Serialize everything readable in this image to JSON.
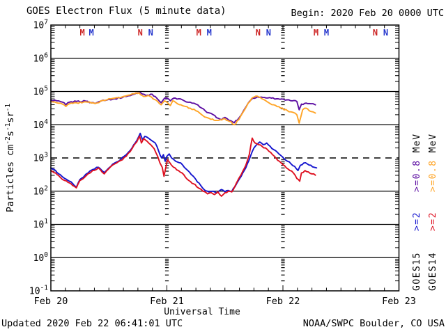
{
  "header": {
    "title": "GOES Electron Flux (5 minute data)",
    "begin": "Begin: 2020 Feb 20 0000 UTC"
  },
  "footer": {
    "updated": "Updated 2020 Feb 22 06:41:01 UTC",
    "source": "NOAA/SWPC Boulder, CO USA"
  },
  "chart_data": {
    "type": "line",
    "title": "GOES Electron Flux (5 minute data)",
    "xlabel": "Universal Time",
    "ylabel_parts": [
      {
        "text": "Particles cm"
      },
      {
        "text": "-2",
        "sup": true
      },
      {
        "text": "s"
      },
      {
        "text": "-1",
        "sup": true
      },
      {
        "text": "sr"
      },
      {
        "text": "-1",
        "sup": true
      }
    ],
    "xlim_days": [
      0,
      3
    ],
    "ylim_exponents": [
      -1,
      7
    ],
    "y_tick_exponents": [
      7,
      6,
      5,
      4,
      3,
      2,
      1,
      0,
      -1
    ],
    "x_ticks": [
      {
        "label": "Feb 20",
        "t": 0
      },
      {
        "label": "Feb 21",
        "t": 1
      },
      {
        "label": "Feb 22",
        "t": 2
      },
      {
        "label": "Feb 23",
        "t": 3
      }
    ],
    "x_minor_step_days": 0.125,
    "interior_day_lines": [
      1,
      2
    ],
    "threshold": {
      "value": 1000,
      "exponent": 3,
      "style": "dashed"
    },
    "axis_color": "#000000",
    "markers": [
      {
        "label": "M",
        "t": 0.271,
        "color": "#CC2222"
      },
      {
        "label": "M",
        "t": 0.349,
        "color": "#2233CC"
      },
      {
        "label": "N",
        "t": 0.77,
        "color": "#CC2222"
      },
      {
        "label": "N",
        "t": 0.86,
        "color": "#2233CC"
      },
      {
        "label": "M",
        "t": 1.275,
        "color": "#CC2222"
      },
      {
        "label": "M",
        "t": 1.365,
        "color": "#2233CC"
      },
      {
        "label": "N",
        "t": 1.786,
        "color": "#CC2222"
      },
      {
        "label": "N",
        "t": 1.876,
        "color": "#2233CC"
      },
      {
        "label": "M",
        "t": 2.285,
        "color": "#CC2222"
      },
      {
        "label": "M",
        "t": 2.375,
        "color": "#2233CC"
      },
      {
        "label": "N",
        "t": 2.796,
        "color": "#CC2222"
      },
      {
        "label": "N",
        "t": 2.886,
        "color": "#2233CC"
      }
    ],
    "legend": {
      "columns": [
        {
          "satellite": "GOES15",
          "unit": "MeV",
          "entries": [
            {
              "text": ">=2",
              "color": "#1414CE"
            },
            {
              "text": ">=0.8",
              "color": "#5C0DA2"
            }
          ]
        },
        {
          "satellite": "GOES14",
          "unit": "MeV",
          "entries": [
            {
              "text": ">=2",
              "color": "#DE1020"
            },
            {
              "text": ">=0.8",
              "color": "#FFA426"
            }
          ]
        }
      ]
    },
    "series": [
      {
        "name": "GOES15 >=0.8 MeV",
        "satellite": "GOES15",
        "channel": ">=0.8 MeV",
        "color": "#5C0DA2",
        "points": [
          [
            0.0,
            55000
          ],
          [
            0.05,
            52500
          ],
          [
            0.1,
            47900
          ],
          [
            0.13,
            39800
          ],
          [
            0.16,
            47900
          ],
          [
            0.22,
            50100
          ],
          [
            0.3,
            51300
          ],
          [
            0.38,
            43700
          ],
          [
            0.45,
            55000
          ],
          [
            0.55,
            60300
          ],
          [
            0.65,
            70800
          ],
          [
            0.72,
            83200
          ],
          [
            0.77,
            93300
          ],
          [
            0.82,
            75900
          ],
          [
            0.86,
            83200
          ],
          [
            0.9,
            70800
          ],
          [
            0.95,
            45700
          ],
          [
            0.98,
            63100
          ],
          [
            1.0,
            63100
          ],
          [
            1.03,
            52500
          ],
          [
            1.06,
            63100
          ],
          [
            1.1,
            60300
          ],
          [
            1.15,
            52500
          ],
          [
            1.2,
            47900
          ],
          [
            1.25,
            41700
          ],
          [
            1.3,
            31600
          ],
          [
            1.33,
            26300
          ],
          [
            1.36,
            22900
          ],
          [
            1.4,
            20000
          ],
          [
            1.44,
            15800
          ],
          [
            1.47,
            14100
          ],
          [
            1.5,
            16600
          ],
          [
            1.52,
            15100
          ],
          [
            1.55,
            13200
          ],
          [
            1.58,
            11500
          ],
          [
            1.62,
            15800
          ],
          [
            1.66,
            26300
          ],
          [
            1.7,
            44700
          ],
          [
            1.74,
            63100
          ],
          [
            1.78,
            69200
          ],
          [
            1.84,
            66100
          ],
          [
            1.9,
            63100
          ],
          [
            1.96,
            60300
          ],
          [
            2.02,
            55000
          ],
          [
            2.08,
            52500
          ],
          [
            2.12,
            50100
          ],
          [
            2.14,
            28200
          ],
          [
            2.16,
            41700
          ],
          [
            2.2,
            44700
          ],
          [
            2.24,
            42700
          ],
          [
            2.28,
            39800
          ]
        ]
      },
      {
        "name": "GOES14 >=0.8 MeV",
        "satellite": "GOES14",
        "channel": ">=0.8 MeV",
        "color": "#FFA426",
        "points": [
          [
            0.0,
            50100
          ],
          [
            0.05,
            45700
          ],
          [
            0.1,
            41700
          ],
          [
            0.13,
            35500
          ],
          [
            0.16,
            42700
          ],
          [
            0.22,
            45700
          ],
          [
            0.3,
            49000
          ],
          [
            0.38,
            43700
          ],
          [
            0.45,
            53700
          ],
          [
            0.55,
            63100
          ],
          [
            0.65,
            74100
          ],
          [
            0.72,
            85100
          ],
          [
            0.76,
            91200
          ],
          [
            0.8,
            70800
          ],
          [
            0.84,
            75900
          ],
          [
            0.88,
            60300
          ],
          [
            0.92,
            50100
          ],
          [
            0.95,
            39800
          ],
          [
            0.98,
            52500
          ],
          [
            1.0,
            47900
          ],
          [
            1.03,
            38000
          ],
          [
            1.05,
            52500
          ],
          [
            1.08,
            45700
          ],
          [
            1.12,
            39800
          ],
          [
            1.16,
            35500
          ],
          [
            1.2,
            31600
          ],
          [
            1.25,
            26300
          ],
          [
            1.3,
            20000
          ],
          [
            1.34,
            16600
          ],
          [
            1.38,
            14500
          ],
          [
            1.42,
            13500
          ],
          [
            1.46,
            14100
          ],
          [
            1.5,
            15100
          ],
          [
            1.54,
            12600
          ],
          [
            1.58,
            10000
          ],
          [
            1.62,
            14100
          ],
          [
            1.66,
            25100
          ],
          [
            1.7,
            44700
          ],
          [
            1.74,
            66100
          ],
          [
            1.78,
            72400
          ],
          [
            1.82,
            60300
          ],
          [
            1.86,
            50100
          ],
          [
            1.92,
            39800
          ],
          [
            1.98,
            31600
          ],
          [
            2.04,
            26300
          ],
          [
            2.08,
            24000
          ],
          [
            2.12,
            20000
          ],
          [
            2.14,
            11200
          ],
          [
            2.17,
            28200
          ],
          [
            2.2,
            31600
          ],
          [
            2.24,
            25100
          ],
          [
            2.28,
            22400
          ]
        ]
      },
      {
        "name": "GOES15 >=2 MeV",
        "satellite": "GOES15",
        "channel": ">=2 MeV",
        "color": "#1414CE",
        "points": [
          [
            0.0,
            501
          ],
          [
            0.04,
            417
          ],
          [
            0.08,
            316
          ],
          [
            0.12,
            240
          ],
          [
            0.16,
            200
          ],
          [
            0.2,
            151
          ],
          [
            0.22,
            132
          ],
          [
            0.25,
            224
          ],
          [
            0.28,
            263
          ],
          [
            0.32,
            355
          ],
          [
            0.36,
            447
          ],
          [
            0.41,
            525
          ],
          [
            0.44,
            417
          ],
          [
            0.46,
            363
          ],
          [
            0.5,
            501
          ],
          [
            0.55,
            708
          ],
          [
            0.6,
            891
          ],
          [
            0.65,
            1260
          ],
          [
            0.7,
            2000
          ],
          [
            0.74,
            3310
          ],
          [
            0.77,
            5500
          ],
          [
            0.79,
            3550
          ],
          [
            0.81,
            4470
          ],
          [
            0.84,
            3980
          ],
          [
            0.87,
            3310
          ],
          [
            0.9,
            2820
          ],
          [
            0.93,
            1580
          ],
          [
            0.955,
            1000
          ],
          [
            0.97,
            1260
          ],
          [
            0.985,
            794
          ],
          [
            1.0,
            1120
          ],
          [
            1.02,
            1320
          ],
          [
            1.04,
            1000
          ],
          [
            1.06,
            891
          ],
          [
            1.09,
            759
          ],
          [
            1.12,
            708
          ],
          [
            1.15,
            525
          ],
          [
            1.18,
            417
          ],
          [
            1.21,
            316
          ],
          [
            1.25,
            224
          ],
          [
            1.29,
            151
          ],
          [
            1.32,
            112
          ],
          [
            1.36,
            95
          ],
          [
            1.4,
            100
          ],
          [
            1.43,
            89
          ],
          [
            1.47,
            112
          ],
          [
            1.5,
            95
          ],
          [
            1.53,
            105
          ],
          [
            1.56,
            100
          ],
          [
            1.6,
            166
          ],
          [
            1.64,
            282
          ],
          [
            1.68,
            501
          ],
          [
            1.72,
            1120
          ],
          [
            1.75,
            2000
          ],
          [
            1.78,
            2630
          ],
          [
            1.8,
            3020
          ],
          [
            1.83,
            2510
          ],
          [
            1.86,
            2820
          ],
          [
            1.89,
            2240
          ],
          [
            1.92,
            1780
          ],
          [
            1.95,
            1510
          ],
          [
            1.98,
            1200
          ],
          [
            2.01,
            955
          ],
          [
            2.04,
            794
          ],
          [
            2.07,
            661
          ],
          [
            2.1,
            562
          ],
          [
            2.13,
            417
          ],
          [
            2.15,
            603
          ],
          [
            2.18,
            708
          ],
          [
            2.21,
            661
          ],
          [
            2.24,
            603
          ],
          [
            2.27,
            525
          ],
          [
            2.29,
            501
          ]
        ]
      },
      {
        "name": "GOES14 >=2 MeV",
        "satellite": "GOES14",
        "channel": ">=2 MeV",
        "color": "#DE1020",
        "points": [
          [
            0.0,
            417
          ],
          [
            0.04,
            355
          ],
          [
            0.08,
            263
          ],
          [
            0.12,
            209
          ],
          [
            0.16,
            178
          ],
          [
            0.2,
            141
          ],
          [
            0.22,
            126
          ],
          [
            0.25,
            209
          ],
          [
            0.28,
            240
          ],
          [
            0.32,
            331
          ],
          [
            0.36,
            417
          ],
          [
            0.41,
            501
          ],
          [
            0.44,
            380
          ],
          [
            0.46,
            331
          ],
          [
            0.5,
            479
          ],
          [
            0.55,
            661
          ],
          [
            0.6,
            832
          ],
          [
            0.65,
            1120
          ],
          [
            0.7,
            1910
          ],
          [
            0.74,
            3020
          ],
          [
            0.765,
            4570
          ],
          [
            0.78,
            2820
          ],
          [
            0.8,
            3800
          ],
          [
            0.83,
            3160
          ],
          [
            0.86,
            2510
          ],
          [
            0.89,
            1910
          ],
          [
            0.92,
            1120
          ],
          [
            0.94,
            708
          ],
          [
            0.96,
            525
          ],
          [
            0.975,
            282
          ],
          [
            0.99,
            501
          ],
          [
            1.005,
            891
          ],
          [
            1.02,
            759
          ],
          [
            1.04,
            603
          ],
          [
            1.07,
            501
          ],
          [
            1.1,
            417
          ],
          [
            1.13,
            355
          ],
          [
            1.16,
            263
          ],
          [
            1.19,
            209
          ],
          [
            1.23,
            166
          ],
          [
            1.27,
            126
          ],
          [
            1.31,
            100
          ],
          [
            1.35,
            83
          ],
          [
            1.38,
            91
          ],
          [
            1.41,
            79
          ],
          [
            1.44,
            95
          ],
          [
            1.47,
            71
          ],
          [
            1.5,
            89
          ],
          [
            1.53,
            100
          ],
          [
            1.56,
            95
          ],
          [
            1.6,
            178
          ],
          [
            1.64,
            316
          ],
          [
            1.68,
            603
          ],
          [
            1.71,
            1260
          ],
          [
            1.735,
            3980
          ],
          [
            1.76,
            2820
          ],
          [
            1.79,
            2510
          ],
          [
            1.82,
            2240
          ],
          [
            1.85,
            2000
          ],
          [
            1.88,
            1580
          ],
          [
            1.91,
            1260
          ],
          [
            1.94,
            1000
          ],
          [
            1.97,
            794
          ],
          [
            2.0,
            631
          ],
          [
            2.03,
            501
          ],
          [
            2.06,
            417
          ],
          [
            2.09,
            355
          ],
          [
            2.12,
            240
          ],
          [
            2.145,
            200
          ],
          [
            2.16,
            355
          ],
          [
            2.19,
            417
          ],
          [
            2.22,
            380
          ],
          [
            2.25,
            331
          ],
          [
            2.28,
            302
          ]
        ]
      }
    ]
  }
}
